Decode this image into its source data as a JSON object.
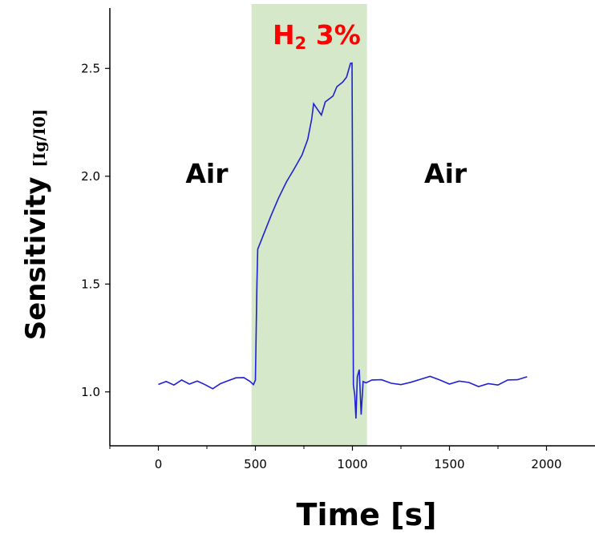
{
  "chart_data": {
    "type": "line",
    "xlabel": "Time [s]",
    "ylabel": "Sensitivity [Ig/I0]",
    "ylabel_main": "Sensitivity ",
    "ylabel_unit": "[Ig/I0]",
    "xlim": [
      -250,
      2250
    ],
    "ylim": [
      0.75,
      2.78
    ],
    "xticks": [
      0,
      500,
      1000,
      1500,
      2000
    ],
    "yticks": [
      1.0,
      1.5,
      2.0,
      2.5
    ],
    "xtick_labels": [
      "0",
      "500",
      "1000",
      "1500",
      "2000"
    ],
    "ytick_labels": [
      "1.0",
      "1.5",
      "2.0",
      "2.5"
    ],
    "shaded_region": {
      "x_start": 480,
      "x_end": 1075,
      "color": "#d5e8c9"
    },
    "annotations": [
      {
        "text": "Air",
        "x": 140,
        "y": 1.97
      },
      {
        "text": "Air",
        "x": 1370,
        "y": 1.97
      }
    ],
    "gas_label": {
      "main": "H",
      "sub": "2",
      "rest": " 3%",
      "color": "#ff0000"
    },
    "series": [
      {
        "color": "#1f1fd6",
        "points": [
          [
            0,
            1.04
          ],
          [
            40,
            1.05
          ],
          [
            80,
            1.03
          ],
          [
            120,
            1.05
          ],
          [
            160,
            1.04
          ],
          [
            200,
            1.05
          ],
          [
            240,
            1.03
          ],
          [
            280,
            1.02
          ],
          [
            320,
            1.04
          ],
          [
            360,
            1.05
          ],
          [
            400,
            1.06
          ],
          [
            440,
            1.07
          ],
          [
            470,
            1.05
          ],
          [
            490,
            1.03
          ],
          [
            500,
            1.06
          ],
          [
            508,
            1.5
          ],
          [
            512,
            1.66
          ],
          [
            540,
            1.72
          ],
          [
            580,
            1.82
          ],
          [
            620,
            1.9
          ],
          [
            660,
            1.97
          ],
          [
            700,
            2.04
          ],
          [
            740,
            2.1
          ],
          [
            770,
            2.17
          ],
          [
            790,
            2.26
          ],
          [
            800,
            2.34
          ],
          [
            820,
            2.31
          ],
          [
            840,
            2.28
          ],
          [
            860,
            2.35
          ],
          [
            880,
            2.36
          ],
          [
            900,
            2.37
          ],
          [
            920,
            2.41
          ],
          [
            950,
            2.44
          ],
          [
            970,
            2.46
          ],
          [
            990,
            2.52
          ],
          [
            998,
            2.53
          ],
          [
            1003,
            1.5
          ],
          [
            1005,
            1.03
          ],
          [
            1012,
            0.98
          ],
          [
            1018,
            0.88
          ],
          [
            1025,
            1.07
          ],
          [
            1035,
            1.1
          ],
          [
            1045,
            0.9
          ],
          [
            1055,
            1.05
          ],
          [
            1070,
            1.04
          ],
          [
            1100,
            1.05
          ],
          [
            1150,
            1.06
          ],
          [
            1200,
            1.04
          ],
          [
            1250,
            1.03
          ],
          [
            1300,
            1.05
          ],
          [
            1350,
            1.06
          ],
          [
            1400,
            1.07
          ],
          [
            1450,
            1.05
          ],
          [
            1500,
            1.04
          ],
          [
            1550,
            1.05
          ],
          [
            1600,
            1.04
          ],
          [
            1650,
            1.03
          ],
          [
            1700,
            1.04
          ],
          [
            1750,
            1.03
          ],
          [
            1800,
            1.05
          ],
          [
            1850,
            1.06
          ],
          [
            1900,
            1.07
          ]
        ]
      }
    ]
  }
}
